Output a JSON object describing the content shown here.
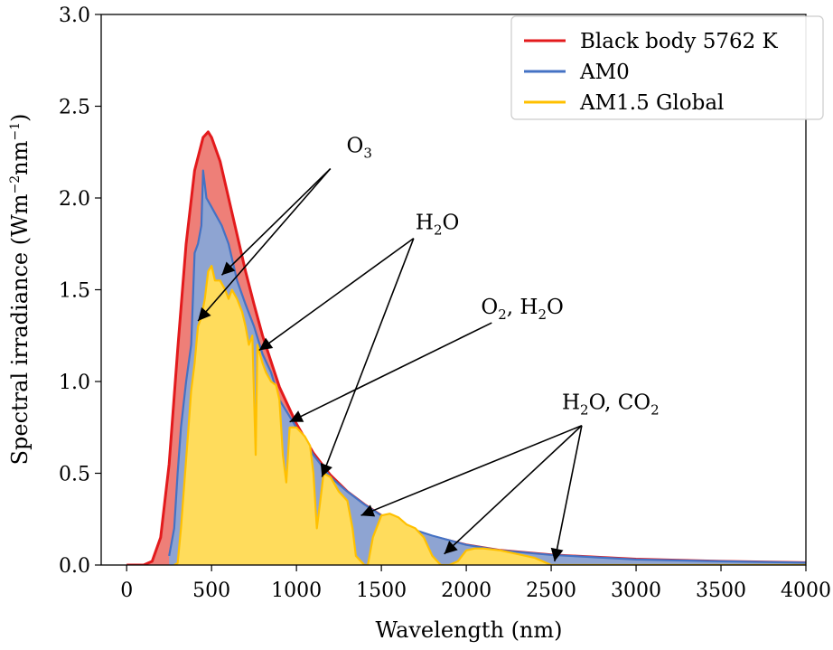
{
  "chart_data": {
    "type": "area",
    "xlabel": "Wavelength (nm)",
    "ylabel": {
      "main": "Spectral irradiance (Wm",
      "exp1": "−2",
      "mid": "nm",
      "exp2": "−1",
      "end": ")"
    },
    "xlim": [
      -150,
      4000
    ],
    "ylim": [
      0,
      3.0
    ],
    "xticks": [
      0,
      500,
      1000,
      1500,
      2000,
      2500,
      3000,
      3500,
      4000
    ],
    "yticks": [
      0.0,
      0.5,
      1.0,
      1.5,
      2.0,
      2.5,
      3.0
    ],
    "ytick_labels": [
      "0.0",
      "0.5",
      "1.0",
      "1.5",
      "2.0",
      "2.5",
      "3.0"
    ],
    "legend_position": "top-right",
    "series": [
      {
        "name": "Black body 5762 K",
        "color": "#e31a1c",
        "fill": "#ee7f78",
        "x": [
          0,
          100,
          150,
          200,
          250,
          300,
          350,
          400,
          450,
          480,
          500,
          550,
          600,
          650,
          700,
          750,
          800,
          900,
          1000,
          1100,
          1200,
          1300,
          1400,
          1500,
          1600,
          1800,
          2000,
          2200,
          2500,
          3000,
          3500,
          4000
        ],
        "y": [
          0,
          0.0,
          0.02,
          0.15,
          0.55,
          1.17,
          1.75,
          2.15,
          2.33,
          2.36,
          2.33,
          2.2,
          2.0,
          1.8,
          1.6,
          1.42,
          1.25,
          0.97,
          0.77,
          0.61,
          0.49,
          0.4,
          0.33,
          0.27,
          0.22,
          0.155,
          0.11,
          0.08,
          0.055,
          0.032,
          0.02,
          0.013
        ]
      },
      {
        "name": "AM0",
        "color": "#4472c4",
        "fill": "#8ea4d2",
        "x": [
          250,
          280,
          300,
          320,
          350,
          380,
          400,
          420,
          440,
          450,
          470,
          500,
          530,
          560,
          600,
          650,
          700,
          750,
          800,
          850,
          900,
          1000,
          1100,
          1200,
          1300,
          1400,
          1500,
          1600,
          1700,
          1800,
          2000,
          2200,
          2500,
          3000,
          3500,
          4000
        ],
        "y": [
          0.05,
          0.2,
          0.5,
          0.75,
          1.0,
          1.2,
          1.7,
          1.75,
          1.85,
          2.15,
          2.0,
          1.95,
          1.9,
          1.85,
          1.75,
          1.55,
          1.42,
          1.3,
          1.15,
          1.05,
          0.9,
          0.75,
          0.6,
          0.48,
          0.4,
          0.33,
          0.27,
          0.23,
          0.19,
          0.16,
          0.11,
          0.08,
          0.055,
          0.03,
          0.02,
          0.013
        ]
      },
      {
        "name": "AM1.5 Global",
        "color": "#ffc000",
        "fill": "#ffdc5c",
        "x": [
          280,
          300,
          320,
          340,
          360,
          380,
          400,
          420,
          440,
          460,
          480,
          500,
          520,
          550,
          580,
          600,
          620,
          650,
          680,
          700,
          720,
          740,
          760,
          770,
          800,
          820,
          850,
          880,
          900,
          920,
          940,
          960,
          980,
          1000,
          1050,
          1080,
          1100,
          1120,
          1140,
          1160,
          1200,
          1250,
          1300,
          1330,
          1350,
          1400,
          1420,
          1450,
          1500,
          1550,
          1600,
          1650,
          1700,
          1750,
          1800,
          1850,
          1900,
          1950,
          2000,
          2050,
          2100,
          2200,
          2300,
          2400,
          2450,
          2500,
          2550,
          2600,
          3000,
          3500,
          4000
        ],
        "y": [
          0,
          0.01,
          0.2,
          0.45,
          0.7,
          0.95,
          1.1,
          1.3,
          1.35,
          1.45,
          1.6,
          1.63,
          1.55,
          1.55,
          1.5,
          1.45,
          1.5,
          1.45,
          1.38,
          1.3,
          1.2,
          1.25,
          0.6,
          1.2,
          1.1,
          1.05,
          1.0,
          0.98,
          0.9,
          0.6,
          0.45,
          0.75,
          0.75,
          0.75,
          0.7,
          0.65,
          0.5,
          0.2,
          0.35,
          0.5,
          0.48,
          0.4,
          0.35,
          0.2,
          0.05,
          0.0,
          0.0,
          0.15,
          0.27,
          0.28,
          0.26,
          0.22,
          0.2,
          0.15,
          0.05,
          0.0,
          0.0,
          0.02,
          0.08,
          0.09,
          0.09,
          0.08,
          0.06,
          0.04,
          0.02,
          0.0,
          0.0,
          0.0,
          0.0,
          0.0,
          0.0
        ]
      }
    ],
    "annotations": [
      {
        "id": "o3",
        "text": {
          "main": "O",
          "sub1": "3",
          "rest": ""
        },
        "label_at": [
          1370,
          2.25
        ],
        "tail": [
          1200,
          2.16
        ],
        "targets": [
          [
            560,
            1.58
          ],
          [
            420,
            1.33
          ]
        ]
      },
      {
        "id": "h2o",
        "text": {
          "main": "H",
          "sub1": "2",
          "rest": "O"
        },
        "label_at": [
          1830,
          1.83
        ],
        "tail": [
          1690,
          1.78
        ],
        "targets": [
          [
            780,
            1.17
          ],
          [
            1150,
            0.48
          ]
        ]
      },
      {
        "id": "o2h2o",
        "text": {
          "main": "O",
          "sub1": "2",
          "rest": ", H"
        },
        "text_tail": {
          "sub2": "2",
          "end": "O"
        },
        "label_at": [
          2330,
          1.37
        ],
        "tail": [
          2150,
          1.32
        ],
        "targets": [
          [
            960,
            0.78
          ]
        ]
      },
      {
        "id": "h2oco2",
        "text": {
          "main": "H",
          "sub1": "2",
          "rest": "O, CO"
        },
        "text_tail": {
          "sub2": "2",
          "end": ""
        },
        "label_at": [
          2850,
          0.85
        ],
        "tail": [
          2680,
          0.76
        ],
        "targets": [
          [
            1380,
            0.27
          ],
          [
            1870,
            0.06
          ],
          [
            2520,
            0.02
          ]
        ]
      }
    ]
  }
}
